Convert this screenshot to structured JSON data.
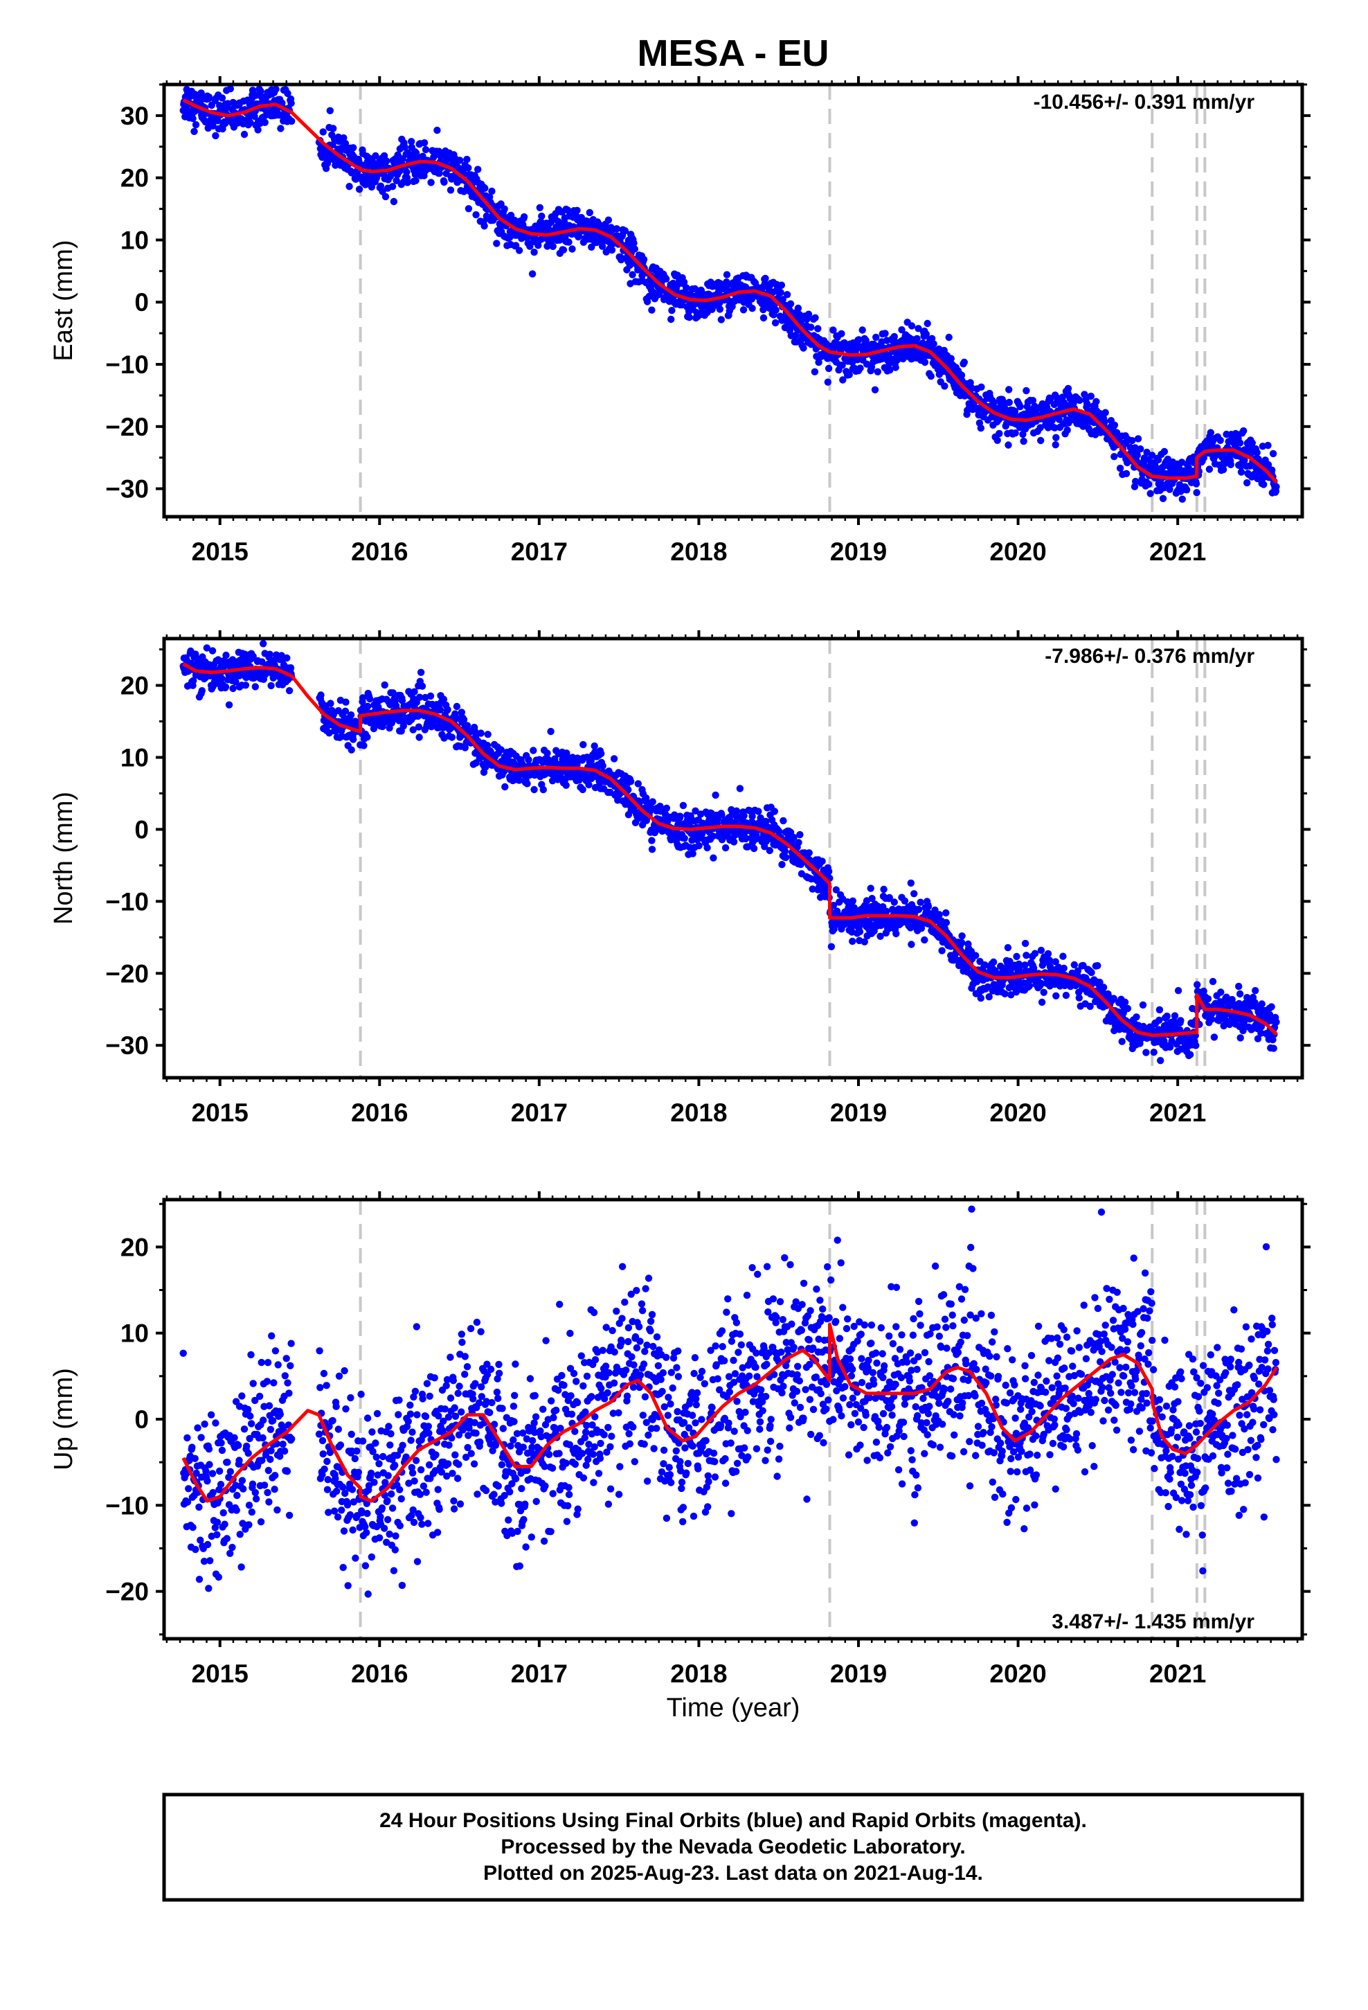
{
  "figure": {
    "title": "MESA - EU",
    "xlabel": "Time (year)",
    "footer": [
      "24 Hour Positions Using Final Orbits (blue) and Rapid Orbits (magenta).",
      "Processed by the Nevada Geodetic Laboratory.",
      "Plotted on 2025-Aug-23. Last data on 2021-Aug-14."
    ]
  },
  "colors": {
    "points": "#0000ff",
    "model": "#ff0000",
    "events": "#c8c8c8",
    "frame": "#000000"
  },
  "chart_data": [
    {
      "type": "scatter",
      "title": "MESA - EU",
      "ylabel": "East (mm)",
      "xlabel": "",
      "xlim": [
        2014.65,
        2021.78
      ],
      "ylim": [
        -34.5,
        35
      ],
      "x_ticks": [
        2015,
        2016,
        2017,
        2018,
        2019,
        2020,
        2021
      ],
      "y_ticks": [
        -30,
        -20,
        -10,
        0,
        10,
        20,
        30
      ],
      "rate_text": "-10.456+/- 0.391 mm/yr",
      "rate_position": "top-right",
      "event_lines": [
        2015.88,
        2018.82,
        2020.84,
        2021.12,
        2021.17
      ],
      "series": [
        {
          "name": "daily positions (Final Orbits)",
          "style": "points"
        },
        {
          "name": "model fit",
          "style": "line",
          "x": [
            2014.77,
            2014.85,
            2014.95,
            2015.05,
            2015.15,
            2015.25,
            2015.35,
            2015.45,
            2015.55,
            2015.65,
            2015.75,
            2015.85,
            2015.88,
            2015.88,
            2015.95,
            2016.05,
            2016.15,
            2016.25,
            2016.35,
            2016.45,
            2016.55,
            2016.65,
            2016.75,
            2016.85,
            2016.95,
            2017.05,
            2017.15,
            2017.25,
            2017.35,
            2017.45,
            2017.55,
            2017.65,
            2017.75,
            2017.85,
            2017.95,
            2018.05,
            2018.15,
            2018.25,
            2018.35,
            2018.45,
            2018.55,
            2018.65,
            2018.75,
            2018.82,
            2018.95,
            2019.05,
            2019.15,
            2019.25,
            2019.35,
            2019.45,
            2019.55,
            2019.65,
            2019.75,
            2019.85,
            2019.95,
            2020.05,
            2020.15,
            2020.25,
            2020.35,
            2020.45,
            2020.55,
            2020.65,
            2020.75,
            2020.84,
            2020.95,
            2021.05,
            2021.12,
            2021.12,
            2021.17,
            2021.25,
            2021.35,
            2021.45,
            2021.55,
            2021.62
          ],
          "y": [
            32.5,
            31.5,
            30.5,
            30.0,
            30.5,
            31.5,
            31.8,
            30.5,
            28.0,
            25.5,
            23.5,
            21.8,
            21.5,
            21.3,
            21.0,
            21.2,
            22.0,
            22.6,
            22.5,
            21.5,
            19.5,
            16.5,
            13.5,
            11.8,
            11.0,
            10.8,
            11.3,
            11.8,
            11.6,
            10.5,
            8.2,
            5.5,
            3.0,
            1.2,
            0.4,
            0.3,
            0.8,
            1.6,
            1.8,
            1.0,
            -1.5,
            -4.5,
            -7.0,
            -8.0,
            -8.5,
            -8.4,
            -7.8,
            -7.2,
            -7.0,
            -8.0,
            -10.5,
            -13.5,
            -16.0,
            -17.8,
            -18.8,
            -19.0,
            -18.5,
            -17.8,
            -17.2,
            -18.0,
            -20.5,
            -23.5,
            -26.5,
            -28.0,
            -28.3,
            -28.3,
            -28.0,
            -25.0,
            -24.0,
            -23.8,
            -23.8,
            -25.0,
            -27.0,
            -29.0
          ]
        }
      ]
    },
    {
      "type": "scatter",
      "ylabel": "North (mm)",
      "xlabel": "",
      "xlim": [
        2014.65,
        2021.78
      ],
      "ylim": [
        -34.5,
        26.5
      ],
      "x_ticks": [
        2015,
        2016,
        2017,
        2018,
        2019,
        2020,
        2021
      ],
      "y_ticks": [
        -30,
        -20,
        -10,
        0,
        10,
        20
      ],
      "rate_text": "-7.986+/- 0.376 mm/yr",
      "rate_position": "top-right",
      "event_lines": [
        2015.88,
        2018.82,
        2020.84,
        2021.12,
        2021.17
      ],
      "series": [
        {
          "name": "daily positions (Final Orbits)",
          "style": "points"
        },
        {
          "name": "model fit",
          "style": "line",
          "x": [
            2014.77,
            2014.85,
            2014.95,
            2015.05,
            2015.15,
            2015.25,
            2015.35,
            2015.45,
            2015.55,
            2015.65,
            2015.75,
            2015.85,
            2015.88,
            2015.88,
            2015.95,
            2016.05,
            2016.15,
            2016.25,
            2016.35,
            2016.45,
            2016.55,
            2016.65,
            2016.75,
            2016.85,
            2016.95,
            2017.05,
            2017.15,
            2017.25,
            2017.35,
            2017.45,
            2017.55,
            2017.65,
            2017.75,
            2017.85,
            2017.95,
            2018.05,
            2018.15,
            2018.25,
            2018.35,
            2018.45,
            2018.55,
            2018.65,
            2018.75,
            2018.82,
            2018.82,
            2018.95,
            2019.05,
            2019.15,
            2019.25,
            2019.35,
            2019.45,
            2019.55,
            2019.65,
            2019.75,
            2019.85,
            2019.95,
            2020.05,
            2020.15,
            2020.25,
            2020.35,
            2020.45,
            2020.55,
            2020.65,
            2020.75,
            2020.84,
            2020.95,
            2021.05,
            2021.12,
            2021.12,
            2021.17,
            2021.25,
            2021.35,
            2021.45,
            2021.55,
            2021.62
          ],
          "y": [
            23.0,
            22.0,
            21.8,
            22.0,
            22.3,
            22.5,
            22.3,
            21.3,
            18.5,
            16.0,
            14.5,
            13.8,
            13.6,
            15.8,
            16.0,
            16.3,
            16.5,
            16.5,
            16.0,
            15.0,
            13.0,
            10.5,
            8.8,
            8.3,
            8.5,
            8.6,
            8.5,
            8.5,
            8.2,
            7.0,
            4.8,
            2.5,
            0.8,
            0.1,
            0.0,
            0.2,
            0.4,
            0.4,
            0.2,
            -0.5,
            -2.0,
            -4.0,
            -6.0,
            -7.5,
            -12.3,
            -12.3,
            -12.0,
            -12.0,
            -12.0,
            -12.1,
            -12.8,
            -14.8,
            -17.5,
            -19.8,
            -20.6,
            -20.6,
            -20.3,
            -20.1,
            -20.2,
            -20.7,
            -21.8,
            -24.0,
            -26.5,
            -28.2,
            -28.6,
            -28.5,
            -28.3,
            -28.2,
            -23.0,
            -25.0,
            -25.0,
            -25.3,
            -25.8,
            -27.0,
            -28.5
          ]
        }
      ]
    },
    {
      "type": "scatter",
      "ylabel": "Up (mm)",
      "xlabel": "Time (year)",
      "xlim": [
        2014.65,
        2021.78
      ],
      "ylim": [
        -25.5,
        25.5
      ],
      "x_ticks": [
        2015,
        2016,
        2017,
        2018,
        2019,
        2020,
        2021
      ],
      "y_ticks": [
        -20,
        -10,
        0,
        10,
        20
      ],
      "rate_text": "3.487+/- 1.435 mm/yr",
      "rate_position": "bottom-right",
      "event_lines": [
        2015.88,
        2018.82,
        2020.84,
        2021.12,
        2021.17
      ],
      "series": [
        {
          "name": "daily positions (Final Orbits)",
          "style": "points"
        },
        {
          "name": "model fit",
          "style": "line",
          "x": [
            2014.77,
            2014.85,
            2014.92,
            2015.0,
            2015.1,
            2015.2,
            2015.3,
            2015.42,
            2015.55,
            2015.62,
            2015.7,
            2015.8,
            2015.88,
            2015.88,
            2015.95,
            2016.05,
            2016.15,
            2016.25,
            2016.35,
            2016.45,
            2016.55,
            2016.65,
            2016.75,
            2016.85,
            2016.95,
            2017.05,
            2017.15,
            2017.25,
            2017.35,
            2017.45,
            2017.55,
            2017.62,
            2017.7,
            2017.8,
            2017.9,
            2017.98,
            2018.05,
            2018.15,
            2018.25,
            2018.35,
            2018.45,
            2018.55,
            2018.65,
            2018.72,
            2018.8,
            2018.82,
            2018.82,
            2018.87,
            2018.95,
            2019.05,
            2019.15,
            2019.25,
            2019.35,
            2019.45,
            2019.55,
            2019.62,
            2019.7,
            2019.8,
            2019.9,
            2019.98,
            2020.08,
            2020.18,
            2020.28,
            2020.38,
            2020.48,
            2020.58,
            2020.66,
            2020.75,
            2020.84,
            2020.84,
            2020.9,
            2020.97,
            2021.05,
            2021.12,
            2021.17,
            2021.25,
            2021.35,
            2021.45,
            2021.55,
            2021.62
          ],
          "y": [
            -4.5,
            -7.5,
            -9.5,
            -9.0,
            -6.5,
            -4.5,
            -3.0,
            -1.5,
            1.0,
            0.5,
            -3.0,
            -6.5,
            -8.0,
            -9.0,
            -9.5,
            -8.0,
            -5.5,
            -3.5,
            -2.5,
            -1.5,
            0.5,
            0.5,
            -2.5,
            -5.5,
            -5.5,
            -3.0,
            -1.5,
            -0.5,
            1.0,
            2.0,
            4.0,
            4.5,
            3.0,
            -1.0,
            -2.5,
            -2.0,
            -0.5,
            1.5,
            3.0,
            4.0,
            5.5,
            7.0,
            8.0,
            7.0,
            5.0,
            4.5,
            11.0,
            7.0,
            4.0,
            3.0,
            3.0,
            3.0,
            3.0,
            3.5,
            5.5,
            6.0,
            5.5,
            3.0,
            -1.0,
            -2.5,
            -1.5,
            0.5,
            2.5,
            4.0,
            5.5,
            7.0,
            7.5,
            6.5,
            3.5,
            2.0,
            -2.0,
            -3.5,
            -4.0,
            -3.0,
            -2.0,
            -0.5,
            1.0,
            2.0,
            4.0,
            6.0
          ]
        }
      ]
    }
  ]
}
